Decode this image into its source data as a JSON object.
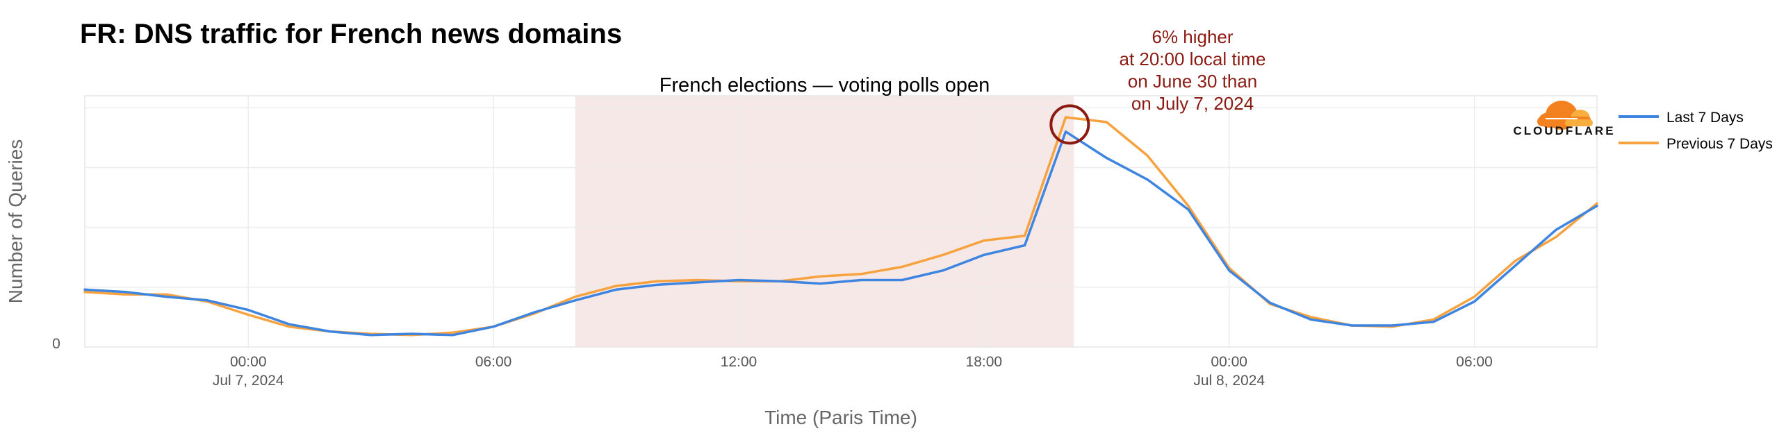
{
  "chart_data": {
    "type": "line",
    "title": "FR: DNS traffic for French news domains",
    "xlabel": "Time (Paris Time)",
    "ylabel": "Number of Queries",
    "y_tick_labels": [
      "0"
    ],
    "x_ticks": [
      {
        "hour": 0,
        "label": "00:00",
        "sublabel": "Jul 7, 2024"
      },
      {
        "hour": 6,
        "label": "06:00",
        "sublabel": ""
      },
      {
        "hour": 12,
        "label": "12:00",
        "sublabel": ""
      },
      {
        "hour": 18,
        "label": "18:00",
        "sublabel": ""
      },
      {
        "hour": 24,
        "label": "00:00",
        "sublabel": "Jul 8, 2024"
      },
      {
        "hour": 30,
        "label": "06:00",
        "sublabel": ""
      }
    ],
    "xlim": [
      -4,
      33
    ],
    "ylim": [
      0,
      105
    ],
    "grid": true,
    "legend_position": "right",
    "highlight_band": {
      "start": 8,
      "end": 20.2,
      "label": "French elections — voting polls open",
      "color": "#f7e8e8"
    },
    "annotation": {
      "lines": [
        "6% higher",
        "at 20:00 local time",
        "on June 30 than",
        "on July 7, 2024"
      ],
      "x": 20.1,
      "y": 93,
      "color": "#8b1a12"
    },
    "logo": "CLOUDFLARE",
    "x": [
      -4,
      -3,
      -2,
      -1,
      0,
      1,
      2,
      3,
      4,
      5,
      6,
      7,
      8,
      9,
      10,
      11,
      12,
      13,
      14,
      15,
      16,
      17,
      18,
      19,
      20,
      21,
      22,
      23,
      24,
      25,
      26,
      27,
      28,
      29,
      30,
      31,
      32,
      33
    ],
    "series": [
      {
        "name": "Last 7 Days",
        "color": "#3d85e0",
        "values": [
          24,
          23,
          21,
          19.5,
          15.5,
          9.5,
          6.5,
          5,
          5.5,
          5,
          8.5,
          14.5,
          19.5,
          24,
          26,
          27,
          28,
          27.5,
          26.5,
          28,
          28,
          32,
          38.5,
          42.5,
          90,
          79,
          70,
          57.5,
          32,
          18.5,
          11.5,
          9,
          9,
          10.5,
          19,
          34,
          49,
          59
        ]
      },
      {
        "name": "Previous 7 Days",
        "color": "#f6a23f",
        "values": [
          23,
          22,
          22,
          19,
          13.5,
          8.5,
          6.5,
          5.5,
          5,
          6,
          8.5,
          14,
          21,
          25.5,
          27.5,
          28,
          27.5,
          27.5,
          29.5,
          30.5,
          33.5,
          38.5,
          44.5,
          46.5,
          96,
          94,
          80,
          59,
          33,
          18,
          12.5,
          9,
          8.5,
          11.5,
          21,
          36,
          46,
          60
        ]
      }
    ]
  }
}
